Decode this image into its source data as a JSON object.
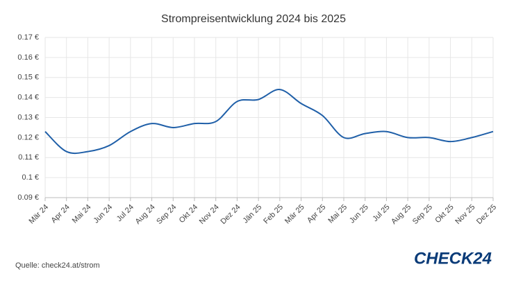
{
  "chart_data": {
    "type": "line",
    "title": "Strompreisentwicklung 2024 bis 2025",
    "categories": [
      "Mär 24",
      "Apr 24",
      "Mai 24",
      "Jun 24",
      "Jul 24",
      "Aug 24",
      "Sep 24",
      "Okt 24",
      "Nov 24",
      "Dez 24",
      "Jän 25",
      "Feb 25",
      "Mär 25",
      "Apr 25",
      "Mai 25",
      "Jun 25",
      "Jul 25",
      "Aug 25",
      "Sep 25",
      "Okt 25",
      "Nov 25",
      "Dez 25"
    ],
    "values": [
      0.123,
      0.113,
      0.113,
      0.116,
      0.123,
      0.127,
      0.125,
      0.127,
      0.128,
      0.138,
      0.139,
      0.144,
      0.137,
      0.131,
      0.12,
      0.122,
      0.123,
      0.12,
      0.12,
      0.118,
      0.12,
      0.123
    ],
    "color": "#1f5fa8",
    "ylim": [
      0.09,
      0.17
    ],
    "yticks": [
      {
        "value": 0.09,
        "label": "0.09 €"
      },
      {
        "value": 0.1,
        "label": "0.1 €"
      },
      {
        "value": 0.11,
        "label": "0.11 €"
      },
      {
        "value": 0.12,
        "label": "0.12 €"
      },
      {
        "value": 0.13,
        "label": "0.13 €"
      },
      {
        "value": 0.14,
        "label": "0.14 €"
      },
      {
        "value": 0.15,
        "label": "0.15 €"
      },
      {
        "value": 0.16,
        "label": "0.16 €"
      },
      {
        "value": 0.17,
        "label": "0.17 €"
      }
    ],
    "grid": true,
    "source": "Quelle: check24.at/strom",
    "brand": "CHECK24"
  }
}
